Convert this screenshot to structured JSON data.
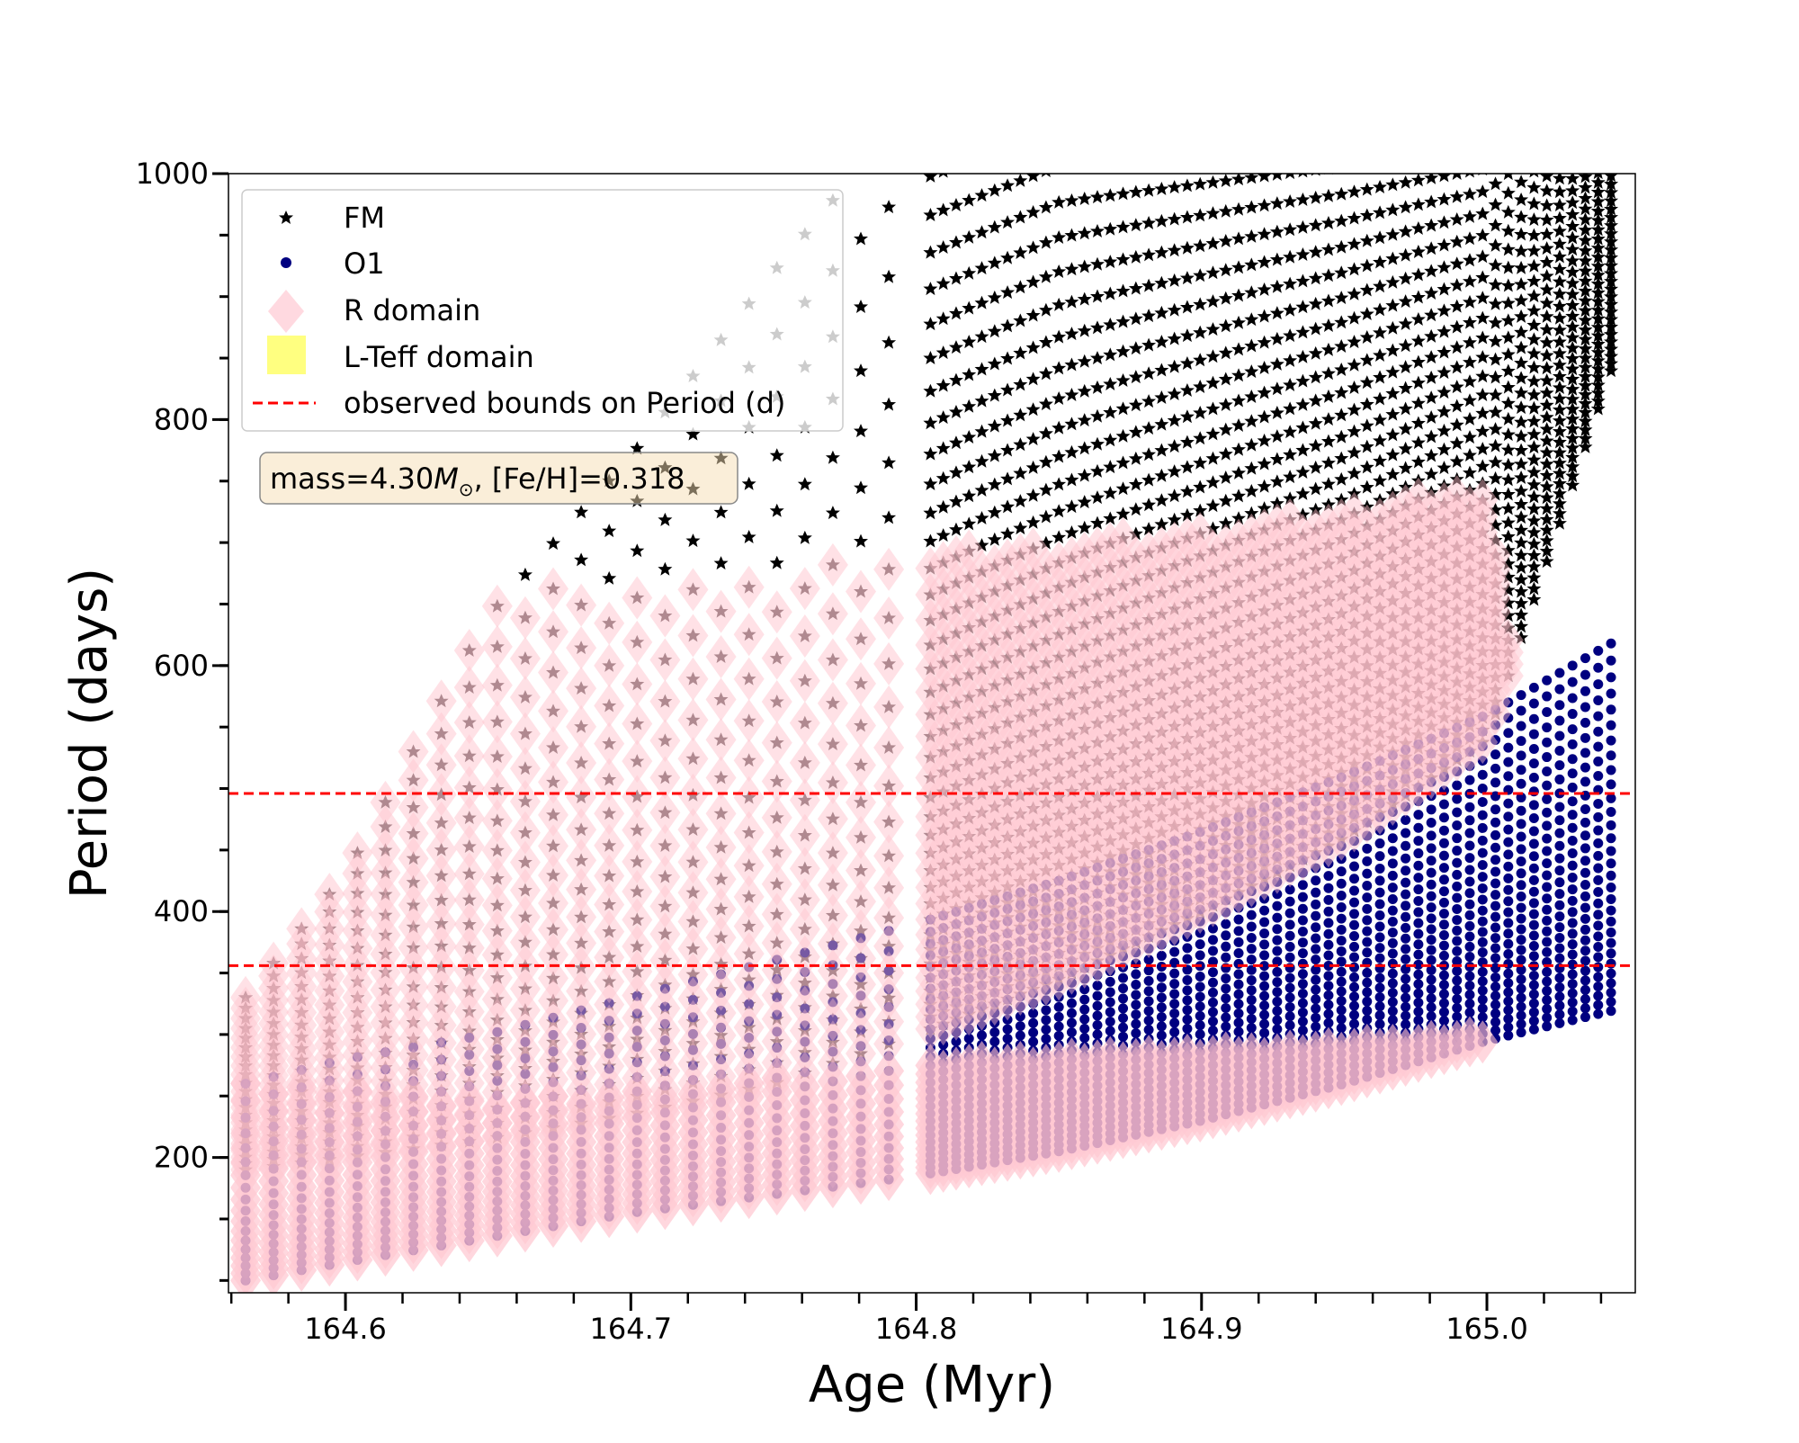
{
  "chart_data": {
    "type": "scatter",
    "title": "",
    "xlabel": "Age (Myr)",
    "ylabel": "Period (days)",
    "xlim": [
      164.559,
      165.052
    ],
    "ylim": [
      90,
      1000
    ],
    "xticks": [
      "164.6",
      "164.7",
      "164.8",
      "164.9",
      "165.0"
    ],
    "xtick_values": [
      164.6,
      164.7,
      164.8,
      164.9,
      165.0
    ],
    "yticks": [
      "200",
      "400",
      "600",
      "800",
      "1000"
    ],
    "ytick_values": [
      200,
      400,
      600,
      800,
      1000
    ],
    "grid": false,
    "legend_position": "top-left",
    "legend": [
      {
        "label": "FM",
        "marker": "star",
        "color": "#000000"
      },
      {
        "label": "O1",
        "marker": "circle",
        "color": "#000080"
      },
      {
        "label": "R domain",
        "marker": "diamond",
        "color": "#ffc0cb"
      },
      {
        "label": "L-Teff domain",
        "marker": "square",
        "color": "#ffff80"
      },
      {
        "label": "observed bounds on Period (d)",
        "marker": "dashed-line",
        "color": "#ff0000"
      }
    ],
    "annotation": {
      "prefix": "mass=4.30",
      "symbol": "M",
      "sub": "⊙",
      "suffix": ", [Fe/H]=0.318"
    },
    "hlines": [
      496,
      356
    ],
    "envelope_ages": [
      164.565,
      164.6,
      164.65,
      164.7,
      164.75,
      164.8,
      164.85,
      164.9,
      164.95,
      165.0,
      165.045
    ],
    "series": [
      {
        "name": "FM",
        "period_min": [
          190,
          200,
          215,
          235,
          260,
          300,
          345,
          400,
          460,
          540,
          850
        ],
        "period_max": [
          330,
          430,
          640,
          770,
          920,
          1060,
          1100,
          1100,
          1100,
          1100,
          1100
        ]
      },
      {
        "name": "O1",
        "period_min": [
          100,
          115,
          135,
          155,
          170,
          185,
          205,
          230,
          260,
          295,
          320
        ],
        "period_max": [
          260,
          280,
          300,
          330,
          360,
          390,
          425,
          465,
          510,
          560,
          620
        ]
      },
      {
        "name": "R domain",
        "fm_period_max": [
          340,
          440,
          660,
          670,
          680,
          690,
          700,
          710,
          725,
          745,
          0
        ],
        "o1_period_max": [
          260,
          255,
          250,
          255,
          265,
          275,
          280,
          285,
          290,
          300,
          0
        ],
        "age_max": 165.015
      }
    ]
  }
}
